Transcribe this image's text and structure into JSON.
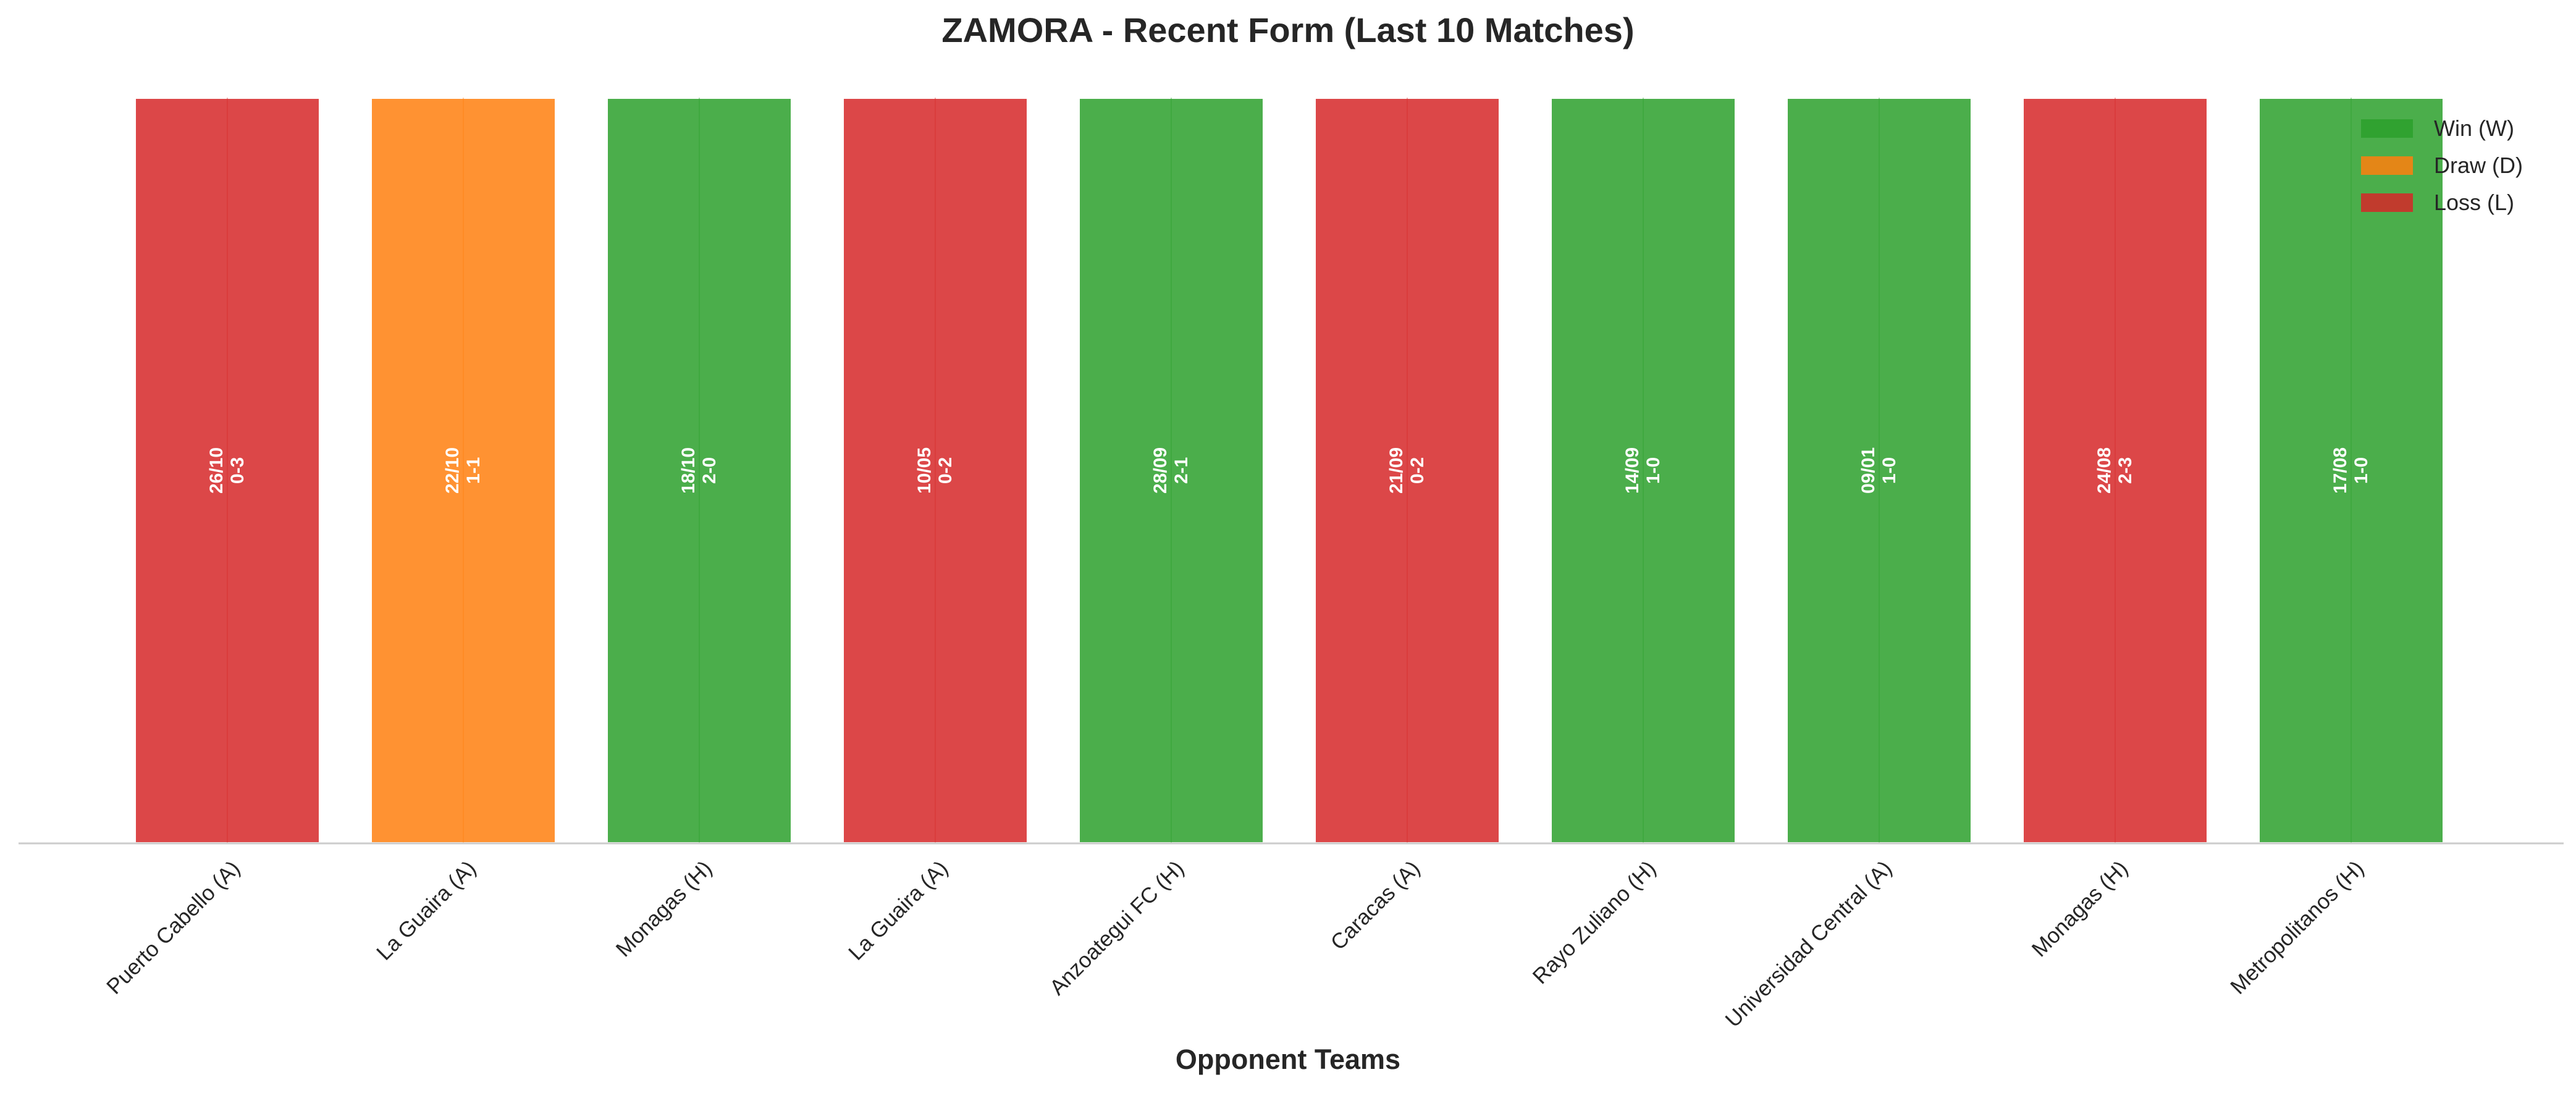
{
  "chart_data": {
    "type": "bar",
    "title": "ZAMORA - Recent Form (Last 10 Matches)",
    "xlabel": "Opponent Teams",
    "ylabel": "",
    "grid": false,
    "legend_position": "top-right",
    "colors": {
      "W": "#2ca02c",
      "D": "#ff7f0e",
      "L": "#d62728"
    },
    "legend": [
      {
        "key": "W",
        "label": "Win (W)"
      },
      {
        "key": "D",
        "label": "Draw (D)"
      },
      {
        "key": "L",
        "label": "Loss (L)"
      }
    ],
    "categories": [
      "Puerto Cabello (A)",
      "La Guaira (A)",
      "Monagas (H)",
      "La Guaira (A)",
      "Anzoategui FC (H)",
      "Caracas (A)",
      "Rayo Zuliano (H)",
      "Universidad Central (A)",
      "Monagas (H)",
      "Metropolitanos (H)"
    ],
    "values": [
      1,
      1,
      1,
      1,
      1,
      1,
      1,
      1,
      1,
      1
    ],
    "results": [
      "L",
      "D",
      "W",
      "L",
      "W",
      "L",
      "W",
      "W",
      "L",
      "W"
    ],
    "dates": [
      "26/10",
      "22/10",
      "18/10",
      "10/05",
      "28/09",
      "21/09",
      "14/09",
      "09/01",
      "24/08",
      "17/08"
    ],
    "scores": [
      "0-3",
      "1-1",
      "2-0",
      "0-2",
      "2-1",
      "0-2",
      "1-0",
      "1-0",
      "2-3",
      "1-0"
    ]
  }
}
